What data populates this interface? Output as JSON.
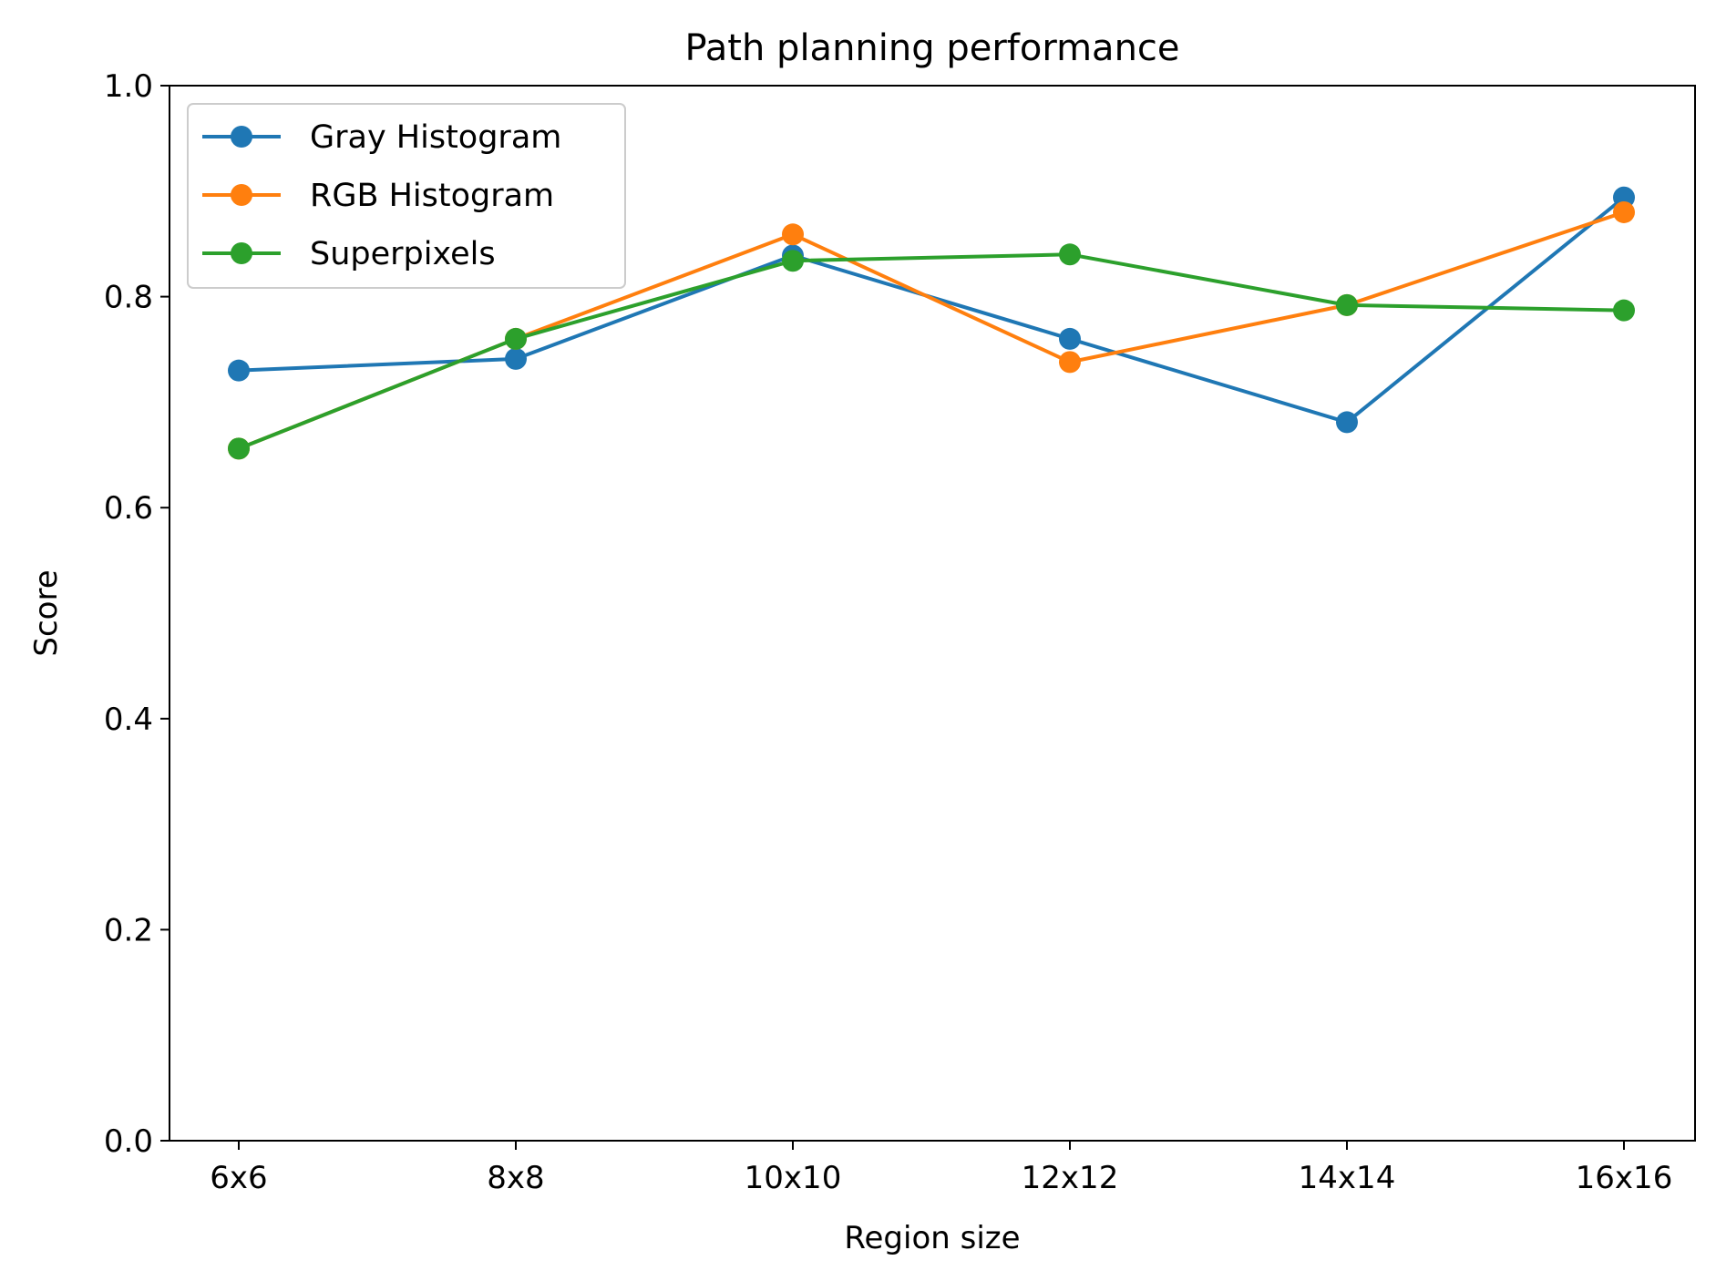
{
  "chart_data": {
    "type": "line",
    "title": "Path planning performance",
    "xlabel": "Region size",
    "ylabel": "Score",
    "categories": [
      "6x6",
      "8x8",
      "10x10",
      "12x12",
      "14x14",
      "16x16"
    ],
    "ylim": [
      0.0,
      1.0
    ],
    "yticks": [
      "0.0",
      "0.2",
      "0.4",
      "0.6",
      "0.8",
      "1.0"
    ],
    "grid": false,
    "legend_position": "top-left",
    "series": [
      {
        "name": "Gray Histogram",
        "color": "#1f77b4",
        "values": [
          0.73,
          0.741,
          0.839,
          0.76,
          0.681,
          0.894
        ]
      },
      {
        "name": "RGB Histogram",
        "color": "#ff7f0e",
        "values": [
          0.656,
          0.76,
          0.859,
          0.738,
          0.792,
          0.88
        ]
      },
      {
        "name": "Superpixels",
        "color": "#2ca02c",
        "values": [
          0.656,
          0.76,
          0.834,
          0.84,
          0.792,
          0.787
        ]
      }
    ]
  }
}
